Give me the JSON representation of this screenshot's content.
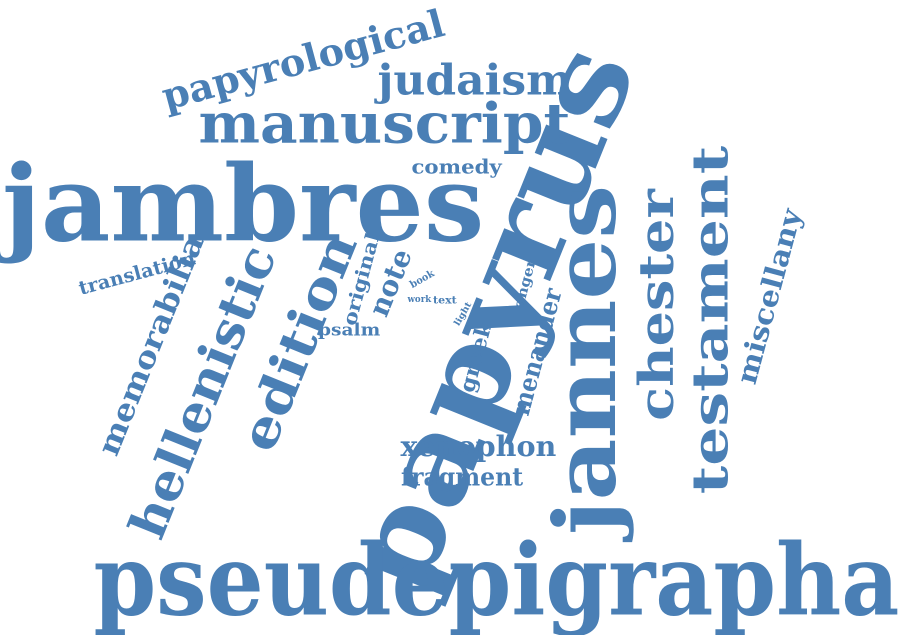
{
  "cloud": {
    "text_color": "#4a7fb5",
    "background": "#ffffff",
    "words": [
      {
        "text": "papyrus"
      },
      {
        "text": "pseudepigrapha"
      },
      {
        "text": "jambres"
      },
      {
        "text": "jannes"
      },
      {
        "text": "manuscript"
      },
      {
        "text": "testament"
      },
      {
        "text": "chester"
      },
      {
        "text": "hellenistic"
      },
      {
        "text": "edition"
      },
      {
        "text": "judaism"
      },
      {
        "text": "papyrological"
      },
      {
        "text": "memorabilia"
      },
      {
        "text": "miscellany"
      },
      {
        "text": "xenophon"
      },
      {
        "text": "fragment"
      },
      {
        "text": "menander"
      },
      {
        "text": "note"
      },
      {
        "text": "greek"
      },
      {
        "text": "translation"
      },
      {
        "text": "comedy"
      },
      {
        "text": "original"
      },
      {
        "text": "psalm"
      },
      {
        "text": "anger"
      },
      {
        "text": "book"
      },
      {
        "text": "text"
      },
      {
        "text": "work"
      },
      {
        "text": "light"
      }
    ]
  }
}
